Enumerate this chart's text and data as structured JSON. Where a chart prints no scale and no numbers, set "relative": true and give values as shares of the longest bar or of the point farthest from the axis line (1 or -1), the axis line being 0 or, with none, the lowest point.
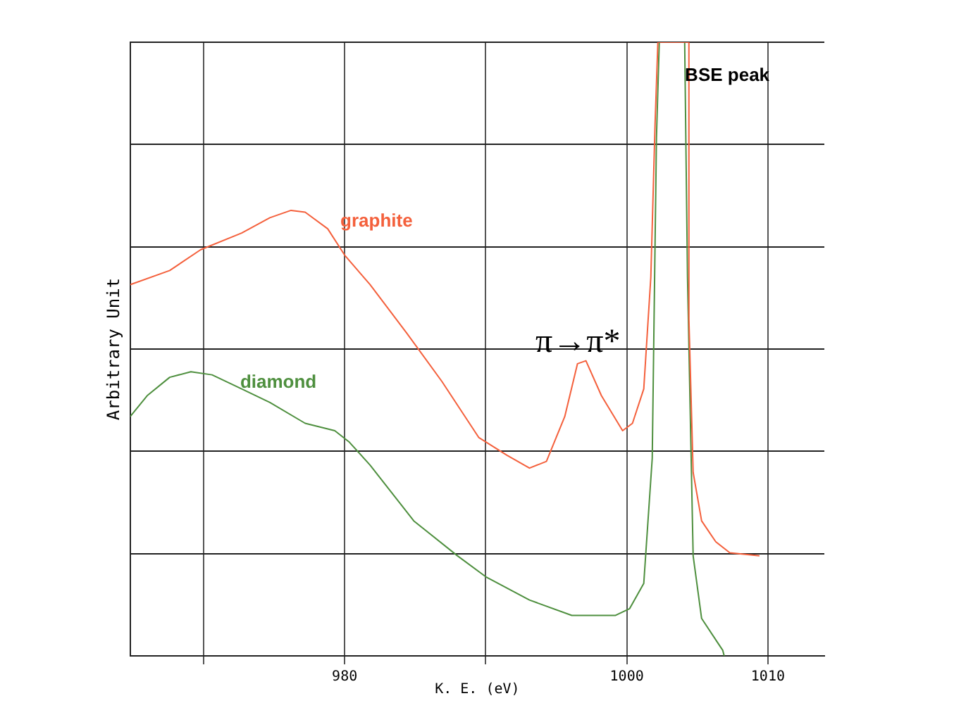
{
  "chart_data": {
    "type": "line",
    "relative": true,
    "xlabel": "K. E. (eV)",
    "ylabel": "Arbitrary Unit",
    "xlim": [
      964.8,
      1014
    ],
    "xticks": [
      {
        "value": 970,
        "label": null
      },
      980,
      {
        "value": 990,
        "label": null
      },
      1000,
      1010
    ],
    "grid": true,
    "legend": false,
    "marker": "none",
    "line_style": "solid",
    "annotations": [
      "π→π*",
      "BSE peak"
    ],
    "series": [
      {
        "name": "graphite",
        "color": "#f4603c",
        "x": [
          964.8,
          967.6,
          969.8,
          972.7,
          974.7,
          976.2,
          977.2,
          978.8,
          980.0,
          981.8,
          984.4,
          986.9,
          989.5,
          991.5,
          993.1,
          994.3,
          995.6,
          996.5,
          997.1,
          998.2,
          999.7,
          1000.4,
          1001.2,
          1001.7,
          1002.0,
          1002.2,
          1004.4,
          1004.4,
          1004.7,
          1005.3,
          1006.3,
          1007.3,
          1009.4
        ],
        "values": [
          0.605,
          0.628,
          0.662,
          0.689,
          0.714,
          0.726,
          0.723,
          0.696,
          0.653,
          0.605,
          0.526,
          0.447,
          0.356,
          0.327,
          0.306,
          0.317,
          0.39,
          0.476,
          0.481,
          0.424,
          0.367,
          0.379,
          0.435,
          0.617,
          0.866,
          1,
          1,
          0.549,
          0.299,
          0.22,
          0.186,
          0.168,
          0.163
        ]
      },
      {
        "name": "diamond",
        "color": "#4e8f3e",
        "x": [
          964.8,
          966.0,
          967.6,
          969.1,
          970.6,
          972.7,
          974.7,
          977.2,
          979.3,
          980.3,
          981.8,
          984.9,
          988.0,
          990.0,
          993.1,
          996.1,
          999.2,
          1000.2,
          1001.2,
          1001.8,
          1002.1,
          1002.3,
          1004.1,
          1004.3,
          1004.7,
          1005.3,
          1006.8,
          1006.9
        ],
        "values": [
          0.39,
          0.424,
          0.454,
          0.463,
          0.458,
          0.435,
          0.413,
          0.379,
          0.367,
          0.349,
          0.311,
          0.22,
          0.163,
          0.129,
          0.091,
          0.066,
          0.066,
          0.077,
          0.118,
          0.322,
          0.844,
          1,
          1,
          0.617,
          0.163,
          0.061,
          0.009,
          0
        ]
      }
    ]
  }
}
